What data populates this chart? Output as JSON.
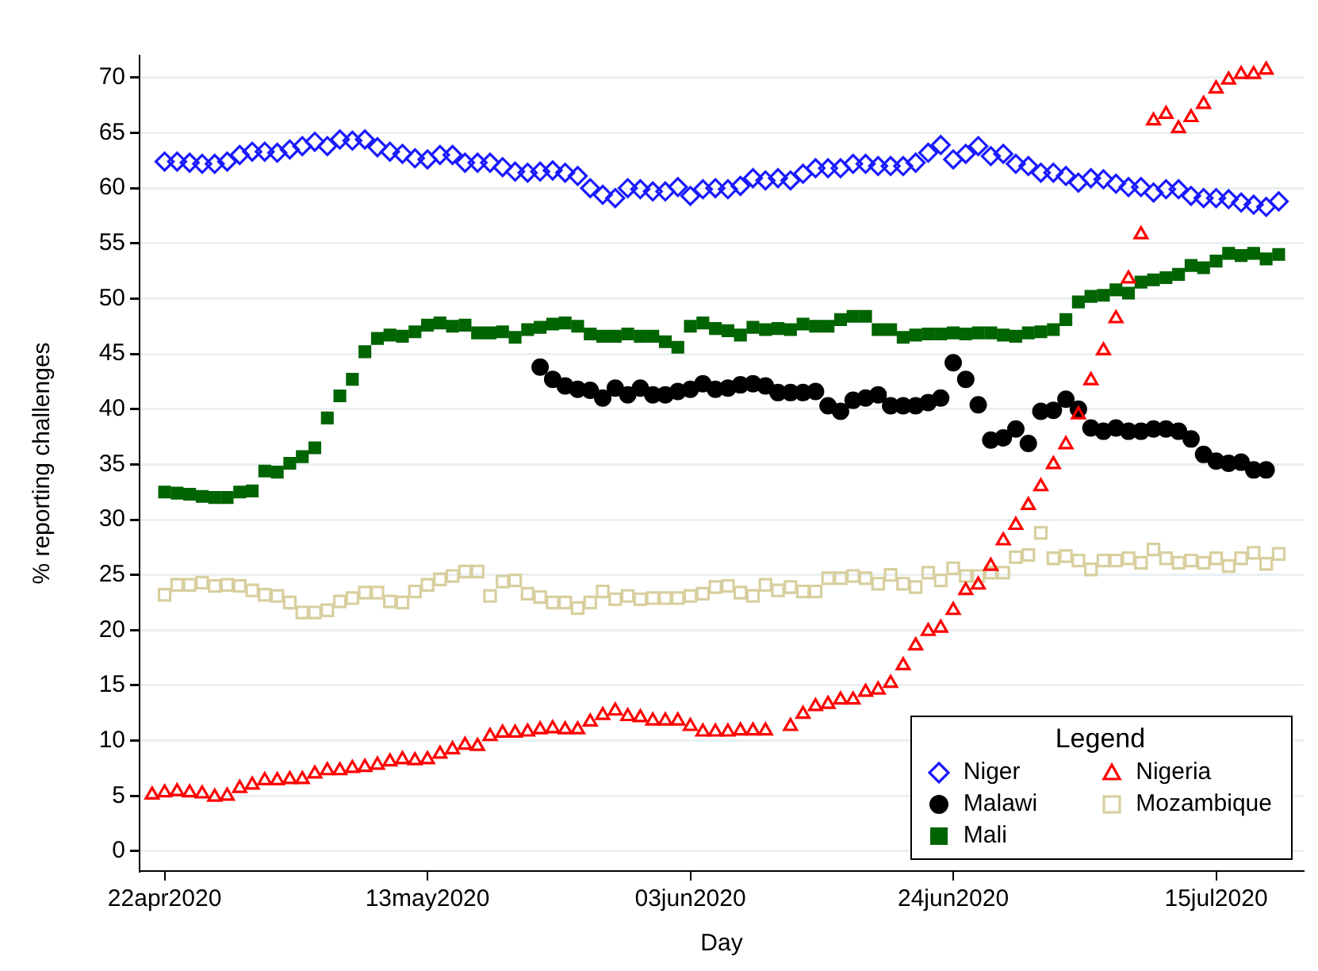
{
  "chart_data": {
    "type": "scatter",
    "xlabel": "Day",
    "ylabel": "% reporting challenges",
    "legend_title": "Legend",
    "legend": "bottom right",
    "grid": "y",
    "xlim": [
      "2020-04-20",
      "2020-07-22"
    ],
    "xticks": [
      {
        "value": "2020-04-22",
        "label": "22apr2020"
      },
      {
        "value": "2020-05-13",
        "label": "13may2020"
      },
      {
        "value": "2020-06-03",
        "label": "03jun2020"
      },
      {
        "value": "2020-06-24",
        "label": "24jun2020"
      },
      {
        "value": "2020-07-15",
        "label": "15jul2020"
      }
    ],
    "ylim": [
      -1.8,
      72
    ],
    "yticks": [
      0,
      5,
      10,
      15,
      20,
      25,
      30,
      35,
      40,
      45,
      50,
      55,
      60,
      65,
      70
    ],
    "x": [
      "2020-04-21",
      "2020-04-22",
      "2020-04-23",
      "2020-04-24",
      "2020-04-25",
      "2020-04-26",
      "2020-04-27",
      "2020-04-28",
      "2020-04-29",
      "2020-04-30",
      "2020-05-01",
      "2020-05-02",
      "2020-05-03",
      "2020-05-04",
      "2020-05-05",
      "2020-05-06",
      "2020-05-07",
      "2020-05-08",
      "2020-05-09",
      "2020-05-10",
      "2020-05-11",
      "2020-05-12",
      "2020-05-13",
      "2020-05-14",
      "2020-05-15",
      "2020-05-16",
      "2020-05-17",
      "2020-05-18",
      "2020-05-19",
      "2020-05-20",
      "2020-05-21",
      "2020-05-22",
      "2020-05-23",
      "2020-05-24",
      "2020-05-25",
      "2020-05-26",
      "2020-05-27",
      "2020-05-28",
      "2020-05-29",
      "2020-05-30",
      "2020-05-31",
      "2020-06-01",
      "2020-06-02",
      "2020-06-03",
      "2020-06-04",
      "2020-06-05",
      "2020-06-06",
      "2020-06-07",
      "2020-06-08",
      "2020-06-09",
      "2020-06-10",
      "2020-06-11",
      "2020-06-12",
      "2020-06-13",
      "2020-06-14",
      "2020-06-15",
      "2020-06-16",
      "2020-06-17",
      "2020-06-18",
      "2020-06-19",
      "2020-06-20",
      "2020-06-21",
      "2020-06-22",
      "2020-06-23",
      "2020-06-24",
      "2020-06-25",
      "2020-06-26",
      "2020-06-27",
      "2020-06-28",
      "2020-06-29",
      "2020-06-30",
      "2020-07-01",
      "2020-07-02",
      "2020-07-03",
      "2020-07-04",
      "2020-07-05",
      "2020-07-06",
      "2020-07-07",
      "2020-07-08",
      "2020-07-09",
      "2020-07-10",
      "2020-07-11",
      "2020-07-12",
      "2020-07-13",
      "2020-07-14",
      "2020-07-15",
      "2020-07-16",
      "2020-07-17",
      "2020-07-18",
      "2020-07-19",
      "2020-07-20"
    ],
    "series": [
      {
        "name": "Niger",
        "color": "#1a1aff",
        "marker": "diamond",
        "values": [
          null,
          62.4,
          62.4,
          62.3,
          62.2,
          62.2,
          62.4,
          63.0,
          63.3,
          63.3,
          63.2,
          63.5,
          63.8,
          64.2,
          63.8,
          64.4,
          64.3,
          64.4,
          63.7,
          63.3,
          63.1,
          62.7,
          62.6,
          63.0,
          63.0,
          62.3,
          62.3,
          62.3,
          61.9,
          61.5,
          61.4,
          61.5,
          61.6,
          61.4,
          61.1,
          60.0,
          59.4,
          59.1,
          60.0,
          59.9,
          59.7,
          59.7,
          60.1,
          59.3,
          59.9,
          60.0,
          59.9,
          60.2,
          60.9,
          60.7,
          60.9,
          60.7,
          61.3,
          61.8,
          61.8,
          61.8,
          62.2,
          62.2,
          62.0,
          62.0,
          62.0,
          62.3,
          63.2,
          63.9,
          62.6,
          63.1,
          63.8,
          62.9,
          63.1,
          62.2,
          62.0,
          61.4,
          61.4,
          61.1,
          60.5,
          60.9,
          60.8,
          60.4,
          60.1,
          60.1,
          59.6,
          59.9,
          59.9,
          59.3,
          59.1,
          59.1,
          59.0,
          58.7,
          58.5,
          58.3,
          58.8
        ]
      },
      {
        "name": "Nigeria",
        "color": "#ff0000",
        "marker": "triangle",
        "values": [
          5.1,
          5.3,
          5.4,
          5.3,
          5.2,
          4.9,
          5.0,
          5.7,
          6.0,
          6.4,
          6.4,
          6.5,
          6.5,
          7.0,
          7.3,
          7.3,
          7.5,
          7.6,
          7.8,
          8.1,
          8.3,
          8.2,
          8.3,
          8.8,
          9.2,
          9.6,
          9.5,
          10.4,
          10.7,
          10.7,
          10.8,
          11.0,
          11.1,
          11.0,
          11.0,
          11.7,
          12.3,
          12.7,
          12.2,
          12.1,
          11.8,
          11.8,
          11.8,
          11.3,
          10.8,
          10.8,
          10.8,
          10.9,
          10.9,
          10.9,
          null,
          11.3,
          12.4,
          13.1,
          13.3,
          13.7,
          13.7,
          14.4,
          14.6,
          15.2,
          16.8,
          18.6,
          19.9,
          20.2,
          21.8,
          23.6,
          24.1,
          25.8,
          28.1,
          29.5,
          31.3,
          33.0,
          35.0,
          36.8,
          39.5,
          42.6,
          45.3,
          48.2,
          51.8,
          55.8,
          66.1,
          66.7,
          65.4,
          66.4,
          67.6,
          69.0,
          69.8,
          70.3,
          70.3,
          70.7,
          null
        ]
      },
      {
        "name": "Malawi",
        "color": "#000000",
        "marker": "circle",
        "values": [
          null,
          null,
          null,
          null,
          null,
          null,
          null,
          null,
          null,
          null,
          null,
          null,
          null,
          null,
          null,
          null,
          null,
          null,
          null,
          null,
          null,
          null,
          null,
          null,
          null,
          null,
          null,
          null,
          null,
          null,
          null,
          43.8,
          42.7,
          42.1,
          41.8,
          41.7,
          41.0,
          41.9,
          41.3,
          41.9,
          41.3,
          41.3,
          41.6,
          41.8,
          42.3,
          41.8,
          41.9,
          42.2,
          42.3,
          42.1,
          41.5,
          41.5,
          41.5,
          41.6,
          40.3,
          39.8,
          40.8,
          41.0,
          41.3,
          40.3,
          40.3,
          40.3,
          40.6,
          41.0,
          44.2,
          42.7,
          40.4,
          37.2,
          37.4,
          38.2,
          36.9,
          39.8,
          39.9,
          40.9,
          40.0,
          38.3,
          38.0,
          38.3,
          38.0,
          38.0,
          38.2,
          38.2,
          38.0,
          37.3,
          35.9,
          35.3,
          35.1,
          35.2,
          34.5,
          34.5,
          null
        ]
      },
      {
        "name": "Mozambique",
        "color": "#d8cf9f",
        "marker": "square",
        "values": [
          null,
          23.2,
          24.1,
          24.1,
          24.3,
          24.0,
          24.1,
          24.0,
          23.6,
          23.2,
          23.1,
          22.5,
          21.6,
          21.6,
          21.8,
          22.6,
          22.9,
          23.4,
          23.4,
          22.6,
          22.5,
          23.5,
          24.1,
          24.6,
          24.9,
          25.3,
          25.3,
          23.1,
          24.4,
          24.5,
          23.3,
          23.0,
          22.5,
          22.5,
          22.0,
          22.5,
          23.5,
          22.8,
          23.1,
          22.8,
          22.9,
          22.9,
          22.9,
          23.1,
          23.3,
          23.9,
          24.0,
          23.4,
          23.1,
          24.1,
          23.6,
          23.9,
          23.5,
          23.5,
          24.7,
          24.7,
          24.9,
          24.7,
          24.2,
          25.0,
          24.2,
          23.9,
          25.2,
          24.5,
          25.6,
          24.9,
          24.9,
          25.2,
          25.2,
          26.6,
          26.8,
          28.8,
          26.5,
          26.7,
          26.3,
          25.5,
          26.3,
          26.3,
          26.5,
          26.1,
          27.3,
          26.5,
          26.1,
          26.3,
          26.1,
          26.5,
          25.8,
          26.5,
          27.0,
          26.0,
          26.9
        ]
      },
      {
        "name": "Mali",
        "color": "#006400",
        "marker": "square",
        "values": [
          null,
          32.5,
          32.4,
          32.3,
          32.1,
          32.0,
          32.0,
          32.5,
          32.6,
          34.4,
          34.3,
          35.1,
          35.7,
          36.5,
          39.2,
          41.2,
          42.7,
          45.2,
          46.4,
          46.7,
          46.6,
          47.0,
          47.6,
          47.8,
          47.5,
          47.6,
          46.9,
          46.9,
          47.0,
          46.5,
          47.2,
          47.4,
          47.7,
          47.8,
          47.5,
          46.8,
          46.6,
          46.6,
          46.8,
          46.6,
          46.6,
          46.1,
          45.6,
          47.5,
          47.8,
          47.3,
          47.1,
          46.7,
          47.4,
          47.2,
          47.3,
          47.2,
          47.7,
          47.5,
          47.5,
          48.1,
          48.4,
          48.4,
          47.2,
          47.2,
          46.5,
          46.7,
          46.8,
          46.8,
          46.9,
          46.8,
          46.9,
          46.9,
          46.7,
          46.6,
          46.9,
          47.0,
          47.2,
          48.1,
          49.7,
          50.2,
          50.3,
          50.8,
          50.5,
          51.5,
          51.7,
          51.9,
          52.2,
          53.0,
          52.8,
          53.4,
          54.1,
          53.9,
          54.1,
          53.6,
          54.0
        ]
      }
    ]
  }
}
